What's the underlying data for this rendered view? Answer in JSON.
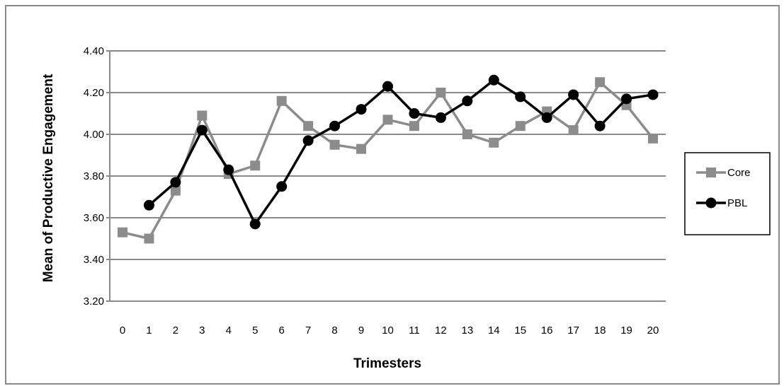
{
  "chart_data": {
    "type": "line",
    "title": "",
    "xlabel": "Trimesters",
    "ylabel": "Mean of Productive Engagement",
    "categories": [
      "0",
      "1",
      "2",
      "3",
      "4",
      "5",
      "6",
      "7",
      "8",
      "9",
      "10",
      "11",
      "12",
      "13",
      "14",
      "15",
      "16",
      "17",
      "18",
      "19",
      "20"
    ],
    "ylim": [
      3.2,
      4.4
    ],
    "yticks": [
      "3.20",
      "3.40",
      "3.60",
      "3.80",
      "4.00",
      "4.20",
      "4.40"
    ],
    "grid": true,
    "legend_position": "right",
    "series": [
      {
        "name": "Core",
        "color": "#8c8c8c",
        "marker": "square",
        "values": [
          3.53,
          3.5,
          3.73,
          4.09,
          3.81,
          3.85,
          4.16,
          4.04,
          3.95,
          3.93,
          4.07,
          4.04,
          4.2,
          4.0,
          3.96,
          4.04,
          4.11,
          4.02,
          4.25,
          4.14,
          3.98
        ]
      },
      {
        "name": "PBL",
        "color": "#000000",
        "marker": "circle",
        "values": [
          null,
          3.66,
          3.77,
          4.02,
          3.83,
          3.57,
          3.75,
          3.97,
          4.04,
          4.12,
          4.23,
          4.1,
          4.08,
          4.16,
          4.26,
          4.18,
          4.08,
          4.19,
          4.04,
          4.17,
          4.19
        ]
      }
    ]
  }
}
